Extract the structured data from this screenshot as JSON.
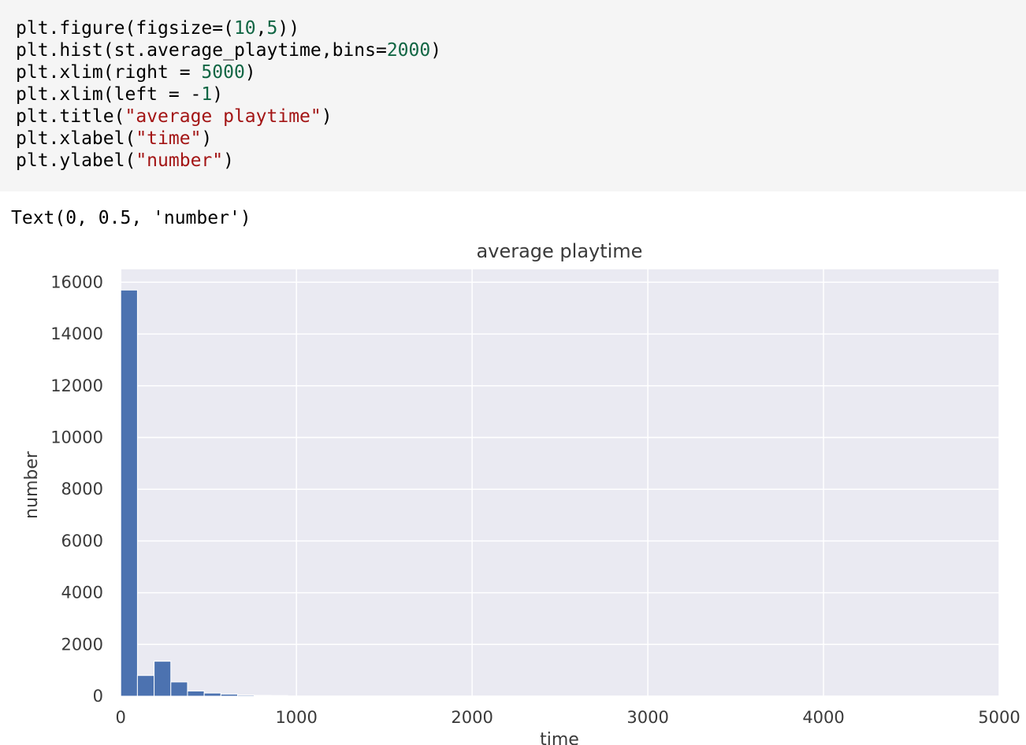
{
  "code_cell": {
    "lines": [
      [
        {
          "t": "plt.figure(figsize=(",
          "k": "plain"
        },
        {
          "t": "10",
          "k": "num"
        },
        {
          "t": ",",
          "k": "plain"
        },
        {
          "t": "5",
          "k": "num"
        },
        {
          "t": "))",
          "k": "plain"
        }
      ],
      [
        {
          "t": "plt.hist(st.average_playtime,bins=",
          "k": "plain"
        },
        {
          "t": "2000",
          "k": "num"
        },
        {
          "t": ")",
          "k": "plain"
        }
      ],
      [
        {
          "t": "plt.xlim(right = ",
          "k": "plain"
        },
        {
          "t": "5000",
          "k": "num"
        },
        {
          "t": ")",
          "k": "plain"
        }
      ],
      [
        {
          "t": "plt.xlim(left = -",
          "k": "plain"
        },
        {
          "t": "1",
          "k": "num"
        },
        {
          "t": ")",
          "k": "plain"
        }
      ],
      [
        {
          "t": "plt.title(",
          "k": "plain"
        },
        {
          "t": "\"average playtime\"",
          "k": "str"
        },
        {
          "t": ")",
          "k": "plain"
        }
      ],
      [
        {
          "t": "plt.xlabel(",
          "k": "plain"
        },
        {
          "t": "\"time\"",
          "k": "str"
        },
        {
          "t": ")",
          "k": "plain"
        }
      ],
      [
        {
          "t": "plt.ylabel(",
          "k": "plain"
        },
        {
          "t": "\"number\"",
          "k": "str"
        },
        {
          "t": ")",
          "k": "plain"
        }
      ]
    ]
  },
  "output": {
    "text": "Text(0, 0.5, 'number')"
  },
  "colors": {
    "code_bg": "#f5f5f5",
    "number_token": "#116644",
    "string_token": "#a31515",
    "plot_bg": "#eaeaf2",
    "grid": "#ffffff",
    "bar": "#4c72b0"
  },
  "chart_data": {
    "type": "bar",
    "title": "average playtime",
    "xlabel": "time",
    "ylabel": "number",
    "xlim": [
      -1,
      5000
    ],
    "ylim": [
      0,
      16500
    ],
    "grid": true,
    "xticks": [
      0,
      1000,
      2000,
      3000,
      4000,
      5000
    ],
    "yticks": [
      0,
      2000,
      4000,
      6000,
      8000,
      10000,
      12000,
      14000,
      16000
    ],
    "bin_width": 95,
    "bins": [
      {
        "start": 0,
        "count": 15700
      },
      {
        "start": 95,
        "count": 800
      },
      {
        "start": 190,
        "count": 1350
      },
      {
        "start": 285,
        "count": 550
      },
      {
        "start": 380,
        "count": 200
      },
      {
        "start": 475,
        "count": 120
      },
      {
        "start": 570,
        "count": 80
      },
      {
        "start": 665,
        "count": 40
      },
      {
        "start": 760,
        "count": 30
      },
      {
        "start": 855,
        "count": 25
      }
    ]
  }
}
